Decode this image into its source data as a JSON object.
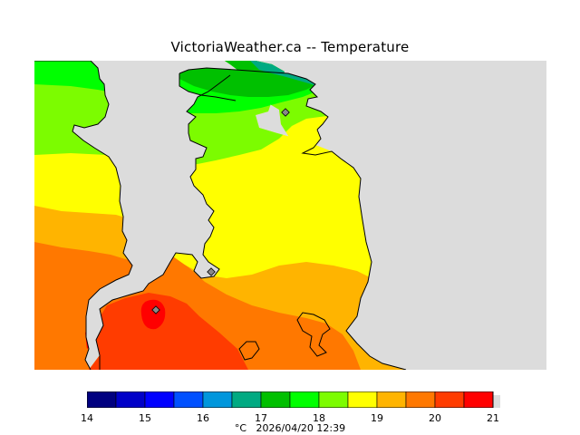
{
  "title": "VictoriaWeather.ca -- Temperature",
  "colors": {
    "land_background": "#dcdcdc",
    "coastline": "#000000",
    "station_marker": "#888888"
  },
  "legend": {
    "unit": "°C",
    "timestamp": "2026/04/20 12:39",
    "caption": "°C   2026/04/20 12:39",
    "min": 14,
    "max": 21,
    "tick_labels": [
      "14",
      "15",
      "16",
      "17",
      "18",
      "19",
      "20",
      "21"
    ],
    "bands": [
      {
        "from": 14.0,
        "to": 14.5,
        "color": "#000080"
      },
      {
        "from": 14.5,
        "to": 15.0,
        "color": "#0000c8"
      },
      {
        "from": 15.0,
        "to": 15.5,
        "color": "#0000ff"
      },
      {
        "from": 15.5,
        "to": 16.0,
        "color": "#0050ff"
      },
      {
        "from": 16.0,
        "to": 16.5,
        "color": "#0096dc"
      },
      {
        "from": 16.5,
        "to": 17.0,
        "color": "#00aa82"
      },
      {
        "from": 17.0,
        "to": 17.5,
        "color": "#00c000"
      },
      {
        "from": 17.5,
        "to": 18.0,
        "color": "#00ff00"
      },
      {
        "from": 18.0,
        "to": 18.5,
        "color": "#7cfc00"
      },
      {
        "from": 18.5,
        "to": 19.0,
        "color": "#ffff00"
      },
      {
        "from": 19.0,
        "to": 19.5,
        "color": "#ffb400"
      },
      {
        "from": 19.5,
        "to": 20.0,
        "color": "#ff7800"
      },
      {
        "from": 20.0,
        "to": 20.5,
        "color": "#ff3c00"
      },
      {
        "from": 20.5,
        "to": 21.0,
        "color": "#ff0000"
      }
    ]
  }
}
